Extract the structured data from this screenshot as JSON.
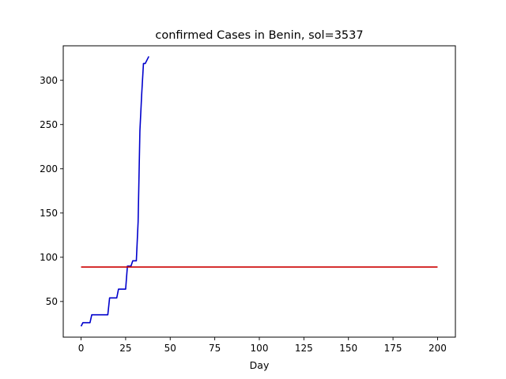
{
  "chart_data": {
    "type": "line",
    "title": "confirmed Cases in Benin, sol=3537",
    "xlabel": "Day",
    "ylabel": "",
    "xlim": [
      -10,
      210
    ],
    "ylim": [
      9.7,
      339
    ],
    "xticks": [
      0,
      25,
      50,
      75,
      100,
      125,
      150,
      175,
      200
    ],
    "yticks": [
      50,
      100,
      150,
      200,
      250,
      300
    ],
    "grid": false,
    "series": [
      {
        "color": "#0000cc",
        "x": [
          0,
          1,
          2,
          3,
          4,
          5,
          6,
          7,
          8,
          9,
          10,
          11,
          12,
          13,
          14,
          15,
          16,
          17,
          18,
          19,
          20,
          21,
          22,
          23,
          24,
          25,
          26,
          27,
          28,
          29,
          30,
          31,
          32,
          33,
          34,
          35,
          36,
          37,
          38
        ],
        "y": [
          22,
          26,
          26,
          26,
          26,
          26,
          35,
          35,
          35,
          35,
          35,
          35,
          35,
          35,
          35,
          35,
          54,
          54,
          54,
          54,
          54,
          64,
          64,
          64,
          64,
          64,
          90,
          90,
          90,
          96,
          96,
          96,
          140,
          243,
          284,
          319,
          319,
          323,
          327
        ]
      },
      {
        "color": "#cc0000",
        "x": [
          0,
          200
        ],
        "y": [
          89,
          89
        ]
      }
    ]
  }
}
